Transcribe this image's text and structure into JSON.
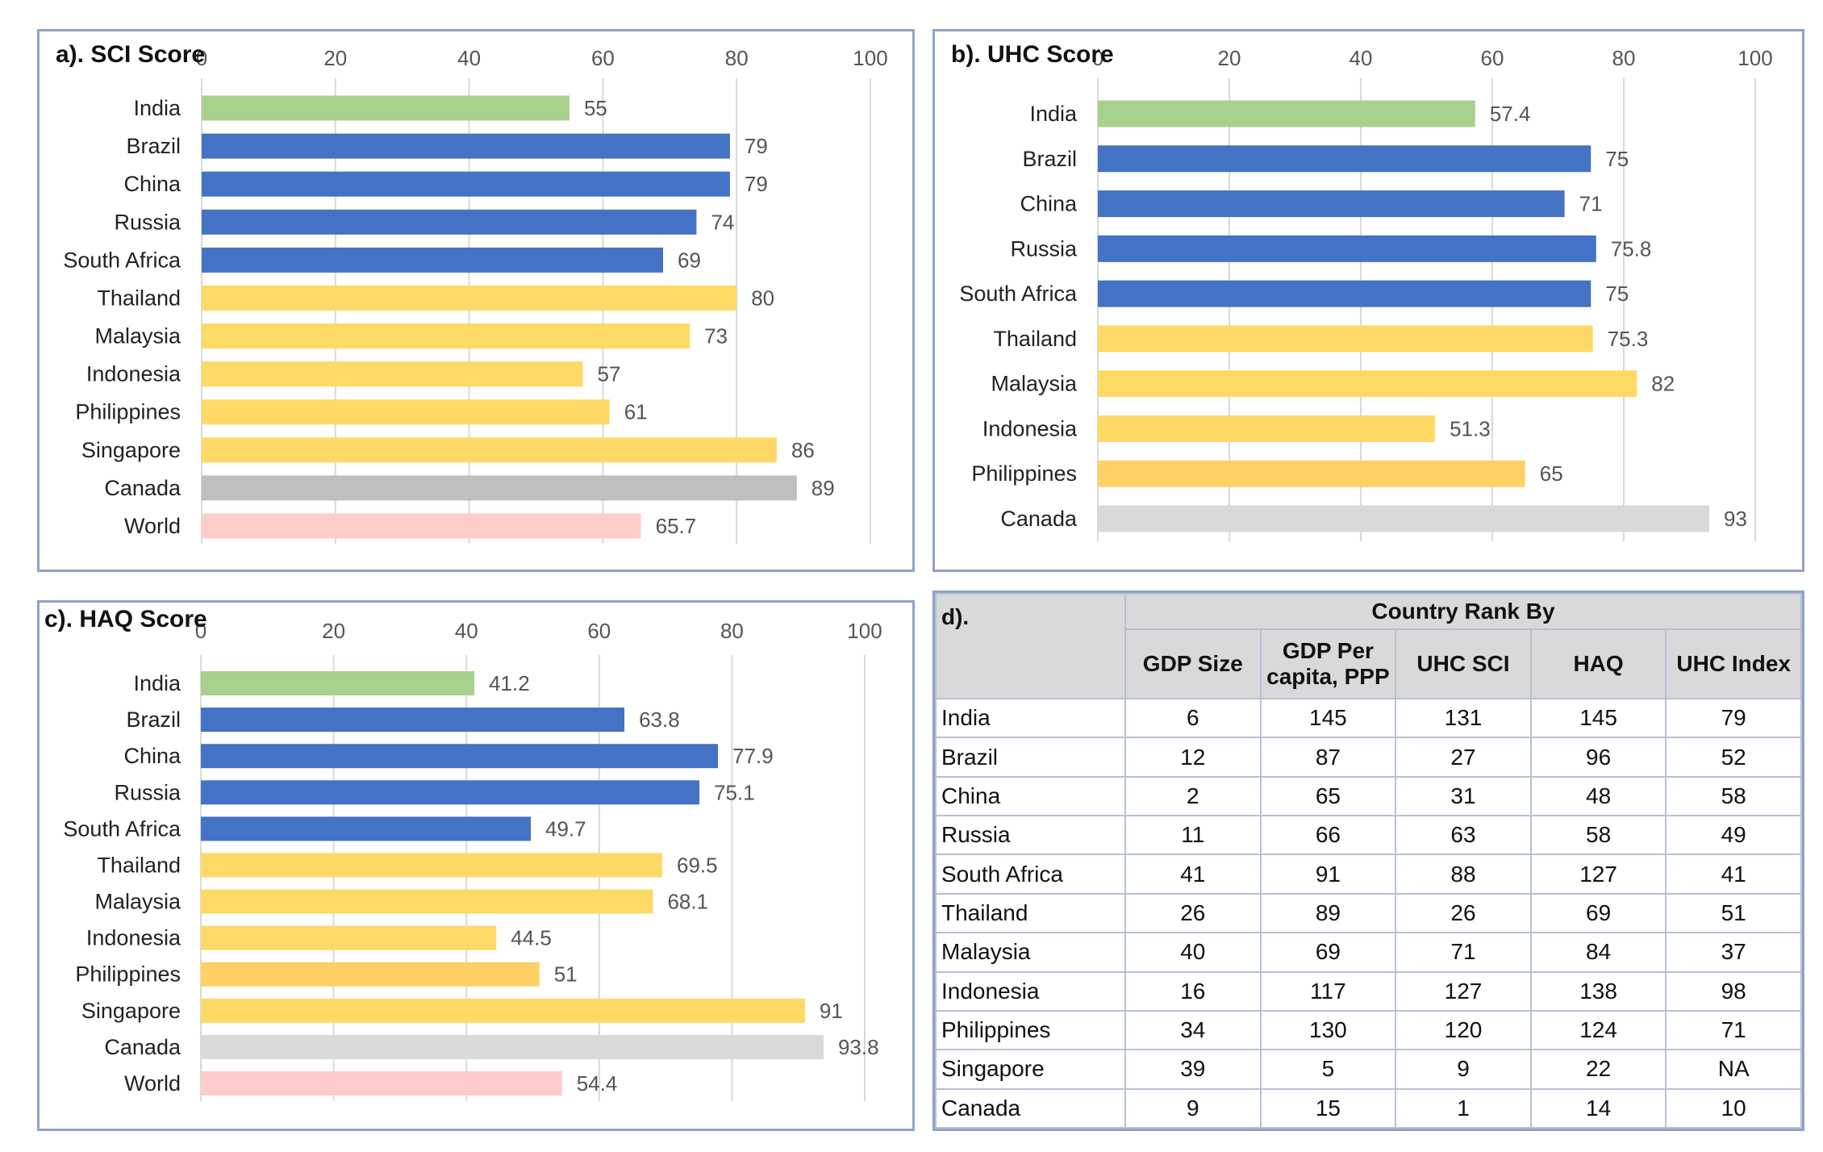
{
  "chart_data": [
    {
      "type": "bar",
      "orientation": "horizontal",
      "title": "a). SCI Score",
      "xlim": [
        0,
        100
      ],
      "ticks": [
        "0",
        "20",
        "40",
        "60",
        "80",
        "100"
      ],
      "grid": true,
      "categories": [
        "India",
        "Brazil",
        "China",
        "Russia",
        "South Africa",
        "Thailand",
        "Malaysia",
        "Indonesia",
        "Philippines",
        "Singapore",
        "Canada",
        "World"
      ],
      "values": [
        55,
        79,
        79,
        74,
        69,
        80,
        73,
        57,
        61,
        86,
        89,
        65.7
      ],
      "value_labels": [
        "55",
        "79",
        "79",
        "74",
        "69",
        "80",
        "73",
        "57",
        "61",
        "86",
        "89",
        "65.7"
      ],
      "colors": [
        "#a9d18e",
        "#4472c4",
        "#4472c4",
        "#4472c4",
        "#4472c4",
        "#ffd966",
        "#ffd966",
        "#ffd966",
        "#ffd966",
        "#ffd966",
        "#bfbfbf",
        "#ffcccc"
      ]
    },
    {
      "type": "bar",
      "orientation": "horizontal",
      "title": "b). UHC Score",
      "xlim": [
        0,
        100
      ],
      "ticks": [
        "0",
        "20",
        "40",
        "60",
        "80",
        "100"
      ],
      "grid": true,
      "categories": [
        "India",
        "Brazil",
        "China",
        "Russia",
        "South Africa",
        "Thailand",
        "Malaysia",
        "Indonesia",
        "Philippines",
        "Canada"
      ],
      "values": [
        57.4,
        75,
        71,
        75.8,
        75,
        75.3,
        82,
        51.3,
        65,
        93
      ],
      "value_labels": [
        "57.4",
        "75",
        "71",
        "75.8",
        "75",
        "75.3",
        "82",
        "51.3",
        "65",
        "93"
      ],
      "colors": [
        "#a9d18e",
        "#4472c4",
        "#4472c4",
        "#4472c4",
        "#4472c4",
        "#ffd966",
        "#ffd966",
        "#ffd966",
        "#ffd066",
        "#d9d9d9"
      ]
    },
    {
      "type": "bar",
      "orientation": "horizontal",
      "title": "c). HAQ Score",
      "xlim": [
        0,
        100
      ],
      "ticks": [
        "0",
        "20",
        "40",
        "60",
        "80",
        "100"
      ],
      "grid": true,
      "categories": [
        "India",
        "Brazil",
        "China",
        "Russia",
        "South Africa",
        "Thailand",
        "Malaysia",
        "Indonesia",
        "Philippines",
        "Singapore",
        "Canada",
        "World"
      ],
      "values": [
        41.2,
        63.8,
        77.9,
        75.1,
        49.7,
        69.5,
        68.1,
        44.5,
        51,
        91,
        93.8,
        54.4
      ],
      "value_labels": [
        "41.2",
        "63.8",
        "77.9",
        "75.1",
        "49.7",
        "69.5",
        "68.1",
        "44.5",
        "51",
        "91",
        "93.8",
        "54.4"
      ],
      "colors": [
        "#a9d18e",
        "#4472c4",
        "#4472c4",
        "#4472c4",
        "#4472c4",
        "#ffd966",
        "#ffd966",
        "#ffd966",
        "#ffd066",
        "#ffd966",
        "#d9d9d9",
        "#ffcccc"
      ]
    },
    {
      "type": "table",
      "title": "d).",
      "group_header": "Country Rank By",
      "columns": [
        "GDP Size",
        "GDP Per capita, PPP",
        "UHC SCI",
        "HAQ",
        "UHC Index"
      ],
      "rows": [
        {
          "country": "India",
          "values": [
            "6",
            "145",
            "131",
            "145",
            "79"
          ]
        },
        {
          "country": "Brazil",
          "values": [
            "12",
            "87",
            "27",
            "96",
            "52"
          ]
        },
        {
          "country": "China",
          "values": [
            "2",
            "65",
            "31",
            "48",
            "58"
          ]
        },
        {
          "country": "Russia",
          "values": [
            "11",
            "66",
            "63",
            "58",
            "49"
          ]
        },
        {
          "country": "South Africa",
          "values": [
            "41",
            "91",
            "88",
            "127",
            "41"
          ]
        },
        {
          "country": "Thailand",
          "values": [
            "26",
            "89",
            "26",
            "69",
            "51"
          ]
        },
        {
          "country": "Malaysia",
          "values": [
            "40",
            "69",
            "71",
            "84",
            "37"
          ]
        },
        {
          "country": "Indonesia",
          "values": [
            "16",
            "117",
            "127",
            "138",
            "98"
          ]
        },
        {
          "country": "Philippines",
          "values": [
            "34",
            "130",
            "120",
            "124",
            "71"
          ]
        },
        {
          "country": "Singapore",
          "values": [
            "39",
            "5",
            "9",
            "22",
            "NA"
          ]
        },
        {
          "country": "Canada",
          "values": [
            "9",
            "15",
            "1",
            "14",
            "10"
          ]
        }
      ]
    }
  ]
}
